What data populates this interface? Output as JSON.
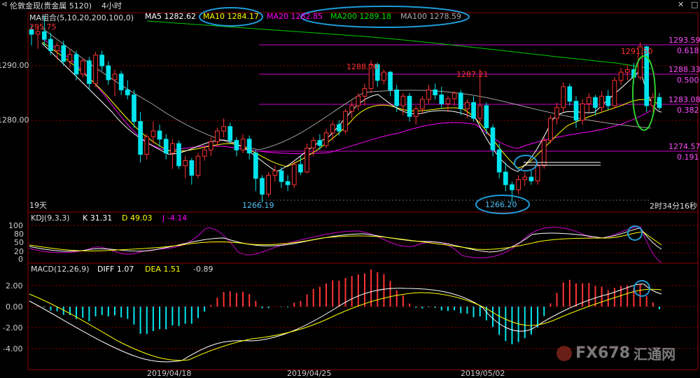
{
  "header": {
    "title": "伦敦金现(贵金属 5120)",
    "period": "4小时",
    "ma_group": "MA组合(5,10,20,200,100,0)",
    "ma5": "MA5 1282.62",
    "ma10": "MA10 1284.17",
    "ma20": "MA20 1282.85",
    "ma200": "MA200 1289.18",
    "ma100": "MA100 1278.59"
  },
  "colors": {
    "bull": "#ff3333",
    "bear": "#00e5ee",
    "ma5": "#ffffff",
    "ma10": "#ffff00",
    "ma20": "#ff00ff",
    "ma200": "#00cc00",
    "ma100": "#a0a0a0",
    "fib": "#cc00cc",
    "circle_blue": "#1e9bd7",
    "circle_green": "#2ecc2e",
    "grid": "#8b0000"
  },
  "main_panel": {
    "high_label": "295.75",
    "y_ticks": [
      "1290.00",
      "1280.00"
    ],
    "left_label": "19天",
    "timer": "2时34分16秒",
    "low_labels": [
      "1266.19",
      "1266.20"
    ],
    "peak_labels": [
      "1288.70",
      "1287.21",
      "1291.50"
    ],
    "fib_levels": [
      {
        "price": "1293.59",
        "ratio": "0.618"
      },
      {
        "price": "1288.33",
        "ratio": "0.500"
      },
      {
        "price": "1283.08",
        "ratio": "0.382"
      },
      {
        "price": "1274.57",
        "ratio": "0.191"
      }
    ]
  },
  "kdj_panel": {
    "title": "KDJ(9,3,3)",
    "k": "K 31.31",
    "d": "D 49.03",
    "j": "J -4.14",
    "y_ticks": [
      "100",
      "80",
      "50",
      "20",
      "0"
    ]
  },
  "macd_panel": {
    "title": "MACD(12,26,9)",
    "diff": "DIFF 1.07",
    "dea": "DEA 1.51",
    "macd": "-0.89",
    "y_ticks": [
      "2.00",
      "0.00",
      "-2.00",
      "-4.00"
    ]
  },
  "x_axis": {
    "dates": [
      "2019/04/18",
      "2019/04/25",
      "2019/05/02"
    ]
  },
  "watermark": {
    "text": "FX678",
    "cn": "汇通网"
  },
  "chart_data": {
    "type": "candlestick",
    "instrument": "伦敦金现",
    "main_ylim": [
      1265,
      1296
    ],
    "candles": [
      [
        1293.5,
        1294.2,
        1291.0,
        1292.8
      ],
      [
        1292.8,
        1294.0,
        1290.5,
        1293.2
      ],
      [
        1293.2,
        1295.75,
        1291.0,
        1292.0
      ],
      [
        1292.0,
        1293.0,
        1289.5,
        1290.2
      ],
      [
        1290.2,
        1291.5,
        1288.8,
        1291.0
      ],
      [
        1291.0,
        1291.8,
        1287.8,
        1288.5
      ],
      [
        1288.5,
        1290.5,
        1287.5,
        1289.6
      ],
      [
        1289.6,
        1290.2,
        1285.5,
        1286.5
      ],
      [
        1286.5,
        1289.0,
        1286.0,
        1288.6
      ],
      [
        1288.6,
        1289.2,
        1284.0,
        1285.0
      ],
      [
        1285.0,
        1290.0,
        1284.5,
        1289.5
      ],
      [
        1289.5,
        1290.2,
        1287.0,
        1287.8
      ],
      [
        1287.8,
        1288.5,
        1284.8,
        1285.6
      ],
      [
        1285.6,
        1287.2,
        1283.0,
        1286.5
      ],
      [
        1286.5,
        1287.0,
        1283.2,
        1284.0
      ],
      [
        1284.0,
        1285.5,
        1282.5,
        1283.2
      ],
      [
        1283.2,
        1284.0,
        1278.0,
        1279.0
      ],
      [
        1279.0,
        1280.5,
        1272.5,
        1273.8
      ],
      [
        1273.8,
        1277.0,
        1273.0,
        1276.6
      ],
      [
        1276.6,
        1279.0,
        1275.5,
        1277.5
      ],
      [
        1277.5,
        1278.5,
        1275.0,
        1276.2
      ],
      [
        1276.2,
        1277.0,
        1273.0,
        1274.0
      ],
      [
        1274.0,
        1276.2,
        1271.5,
        1275.5
      ],
      [
        1275.5,
        1276.0,
        1271.5,
        1272.0
      ],
      [
        1272.0,
        1273.5,
        1270.0,
        1272.8
      ],
      [
        1272.8,
        1273.2,
        1269.0,
        1270.5
      ],
      [
        1270.5,
        1274.0,
        1270.0,
        1273.5
      ],
      [
        1273.5,
        1275.0,
        1272.8,
        1274.5
      ],
      [
        1274.5,
        1276.5,
        1273.5,
        1275.8
      ],
      [
        1275.8,
        1278.0,
        1275.0,
        1277.5
      ],
      [
        1277.5,
        1279.5,
        1276.5,
        1278.2
      ],
      [
        1278.2,
        1278.8,
        1275.5,
        1276.0
      ],
      [
        1276.0,
        1276.5,
        1273.5,
        1274.5
      ],
      [
        1274.5,
        1277.0,
        1274.0,
        1276.2
      ],
      [
        1276.2,
        1276.8,
        1273.0,
        1274.0
      ],
      [
        1274.0,
        1274.5,
        1268.0,
        1270.0
      ],
      [
        1270.0,
        1270.5,
        1266.19,
        1267.5
      ],
      [
        1267.5,
        1271.0,
        1267.0,
        1270.5
      ],
      [
        1270.5,
        1272.0,
        1269.5,
        1271.2
      ],
      [
        1271.2,
        1271.8,
        1268.5,
        1269.5
      ],
      [
        1269.5,
        1270.5,
        1268.0,
        1269.0
      ],
      [
        1269.0,
        1272.8,
        1268.5,
        1272.2
      ],
      [
        1272.2,
        1273.5,
        1270.5,
        1271.0
      ],
      [
        1271.0,
        1275.5,
        1270.8,
        1274.8
      ],
      [
        1274.8,
        1276.5,
        1273.5,
        1276.0
      ],
      [
        1276.0,
        1277.0,
        1274.5,
        1275.2
      ],
      [
        1275.2,
        1277.8,
        1274.8,
        1277.2
      ],
      [
        1277.2,
        1279.0,
        1276.0,
        1278.5
      ],
      [
        1278.5,
        1279.2,
        1276.8,
        1277.5
      ],
      [
        1277.5,
        1281.0,
        1277.0,
        1280.6
      ],
      [
        1280.6,
        1282.2,
        1279.5,
        1281.5
      ],
      [
        1281.5,
        1283.5,
        1280.8,
        1283.0
      ],
      [
        1283.0,
        1285.0,
        1281.5,
        1284.2
      ],
      [
        1284.2,
        1288.7,
        1283.5,
        1288.0
      ],
      [
        1288.0,
        1288.3,
        1284.5,
        1285.5
      ],
      [
        1285.5,
        1287.2,
        1284.8,
        1286.8
      ],
      [
        1286.8,
        1287.0,
        1283.0,
        1284.0
      ],
      [
        1284.0,
        1284.8,
        1280.5,
        1281.5
      ],
      [
        1281.5,
        1283.5,
        1280.0,
        1283.0
      ],
      [
        1283.0,
        1283.5,
        1279.0,
        1279.8
      ],
      [
        1279.8,
        1281.5,
        1278.5,
        1281.0
      ],
      [
        1281.0,
        1283.0,
        1280.2,
        1282.5
      ],
      [
        1282.5,
        1284.8,
        1281.8,
        1284.0
      ],
      [
        1284.0,
        1285.0,
        1282.5,
        1283.2
      ],
      [
        1283.2,
        1284.5,
        1281.0,
        1281.8
      ],
      [
        1281.8,
        1283.0,
        1280.5,
        1282.6
      ],
      [
        1282.6,
        1283.8,
        1281.5,
        1283.5
      ],
      [
        1283.5,
        1284.0,
        1280.0,
        1281.0
      ],
      [
        1281.0,
        1282.5,
        1279.5,
        1282.0
      ],
      [
        1282.0,
        1283.0,
        1279.0,
        1279.5
      ],
      [
        1279.5,
        1287.21,
        1278.8,
        1281.5
      ],
      [
        1281.5,
        1282.0,
        1277.0,
        1278.0
      ],
      [
        1278.0,
        1278.5,
        1273.5,
        1274.5
      ],
      [
        1274.5,
        1275.5,
        1270.0,
        1271.0
      ],
      [
        1271.0,
        1272.5,
        1268.0,
        1269.0
      ],
      [
        1269.0,
        1269.5,
        1266.2,
        1268.2
      ],
      [
        1268.2,
        1270.5,
        1267.5,
        1269.8
      ],
      [
        1269.8,
        1271.0,
        1268.8,
        1270.2
      ],
      [
        1270.2,
        1271.2,
        1269.0,
        1269.6
      ],
      [
        1269.6,
        1272.5,
        1269.0,
        1272.0
      ],
      [
        1272.0,
        1276.5,
        1271.5,
        1276.0
      ],
      [
        1276.0,
        1280.0,
        1275.5,
        1279.5
      ],
      [
        1279.5,
        1282.0,
        1278.5,
        1281.2
      ],
      [
        1281.2,
        1285.2,
        1280.5,
        1284.5
      ],
      [
        1284.5,
        1285.0,
        1281.5,
        1282.2
      ],
      [
        1282.2,
        1283.0,
        1278.0,
        1279.2
      ],
      [
        1279.2,
        1282.5,
        1278.5,
        1281.8
      ],
      [
        1281.8,
        1283.5,
        1280.5,
        1282.8
      ],
      [
        1282.8,
        1283.2,
        1280.0,
        1281.2
      ],
      [
        1281.2,
        1283.8,
        1280.5,
        1283.0
      ],
      [
        1283.0,
        1284.0,
        1280.8,
        1281.5
      ],
      [
        1281.5,
        1286.0,
        1281.0,
        1285.5
      ],
      [
        1285.5,
        1287.5,
        1284.8,
        1286.8
      ],
      [
        1286.8,
        1288.0,
        1285.5,
        1287.2
      ],
      [
        1287.2,
        1288.2,
        1285.0,
        1286.0
      ],
      [
        1286.0,
        1291.5,
        1285.5,
        1290.8
      ],
      [
        1290.8,
        1291.0,
        1280.5,
        1281.5
      ],
      [
        1281.5,
        1283.5,
        1280.5,
        1282.8
      ],
      [
        1282.8,
        1283.5,
        1280.8,
        1281.2
      ]
    ]
  }
}
